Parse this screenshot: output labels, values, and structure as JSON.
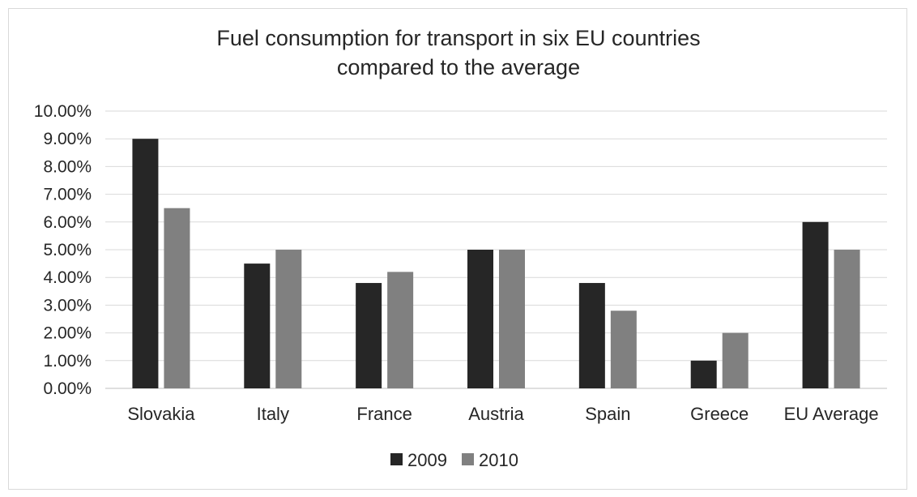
{
  "chart_data": {
    "type": "bar",
    "title_lines": [
      "Fuel consumption for transport in six EU countries",
      "compared to the average"
    ],
    "categories": [
      "Slovakia",
      "Italy",
      "France",
      "Austria",
      "Spain",
      "Greece",
      "EU Average"
    ],
    "series": [
      {
        "name": "2009",
        "color": "#262626",
        "values": [
          9.0,
          4.5,
          3.8,
          5.0,
          3.8,
          1.0,
          6.0
        ]
      },
      {
        "name": "2010",
        "color": "#808080",
        "values": [
          6.5,
          5.0,
          4.2,
          5.0,
          2.8,
          2.0,
          5.0
        ]
      }
    ],
    "y_ticks": [
      "0.00%",
      "1.00%",
      "2.00%",
      "3.00%",
      "4.00%",
      "5.00%",
      "6.00%",
      "7.00%",
      "8.00%",
      "9.00%",
      "10.00%"
    ],
    "ylim": [
      0,
      10
    ],
    "grid": true,
    "legend_position": "bottom"
  }
}
